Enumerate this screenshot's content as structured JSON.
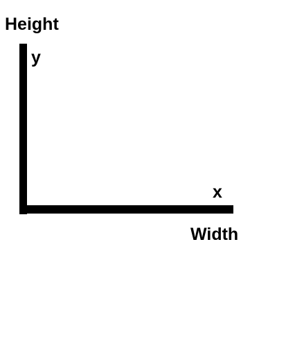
{
  "diagram": {
    "labels": {
      "height": "Height",
      "y": "y",
      "x": "x",
      "width": "Width"
    },
    "colors": {
      "background": "#ffffff",
      "axis": "#000000",
      "text": "#000000"
    }
  }
}
